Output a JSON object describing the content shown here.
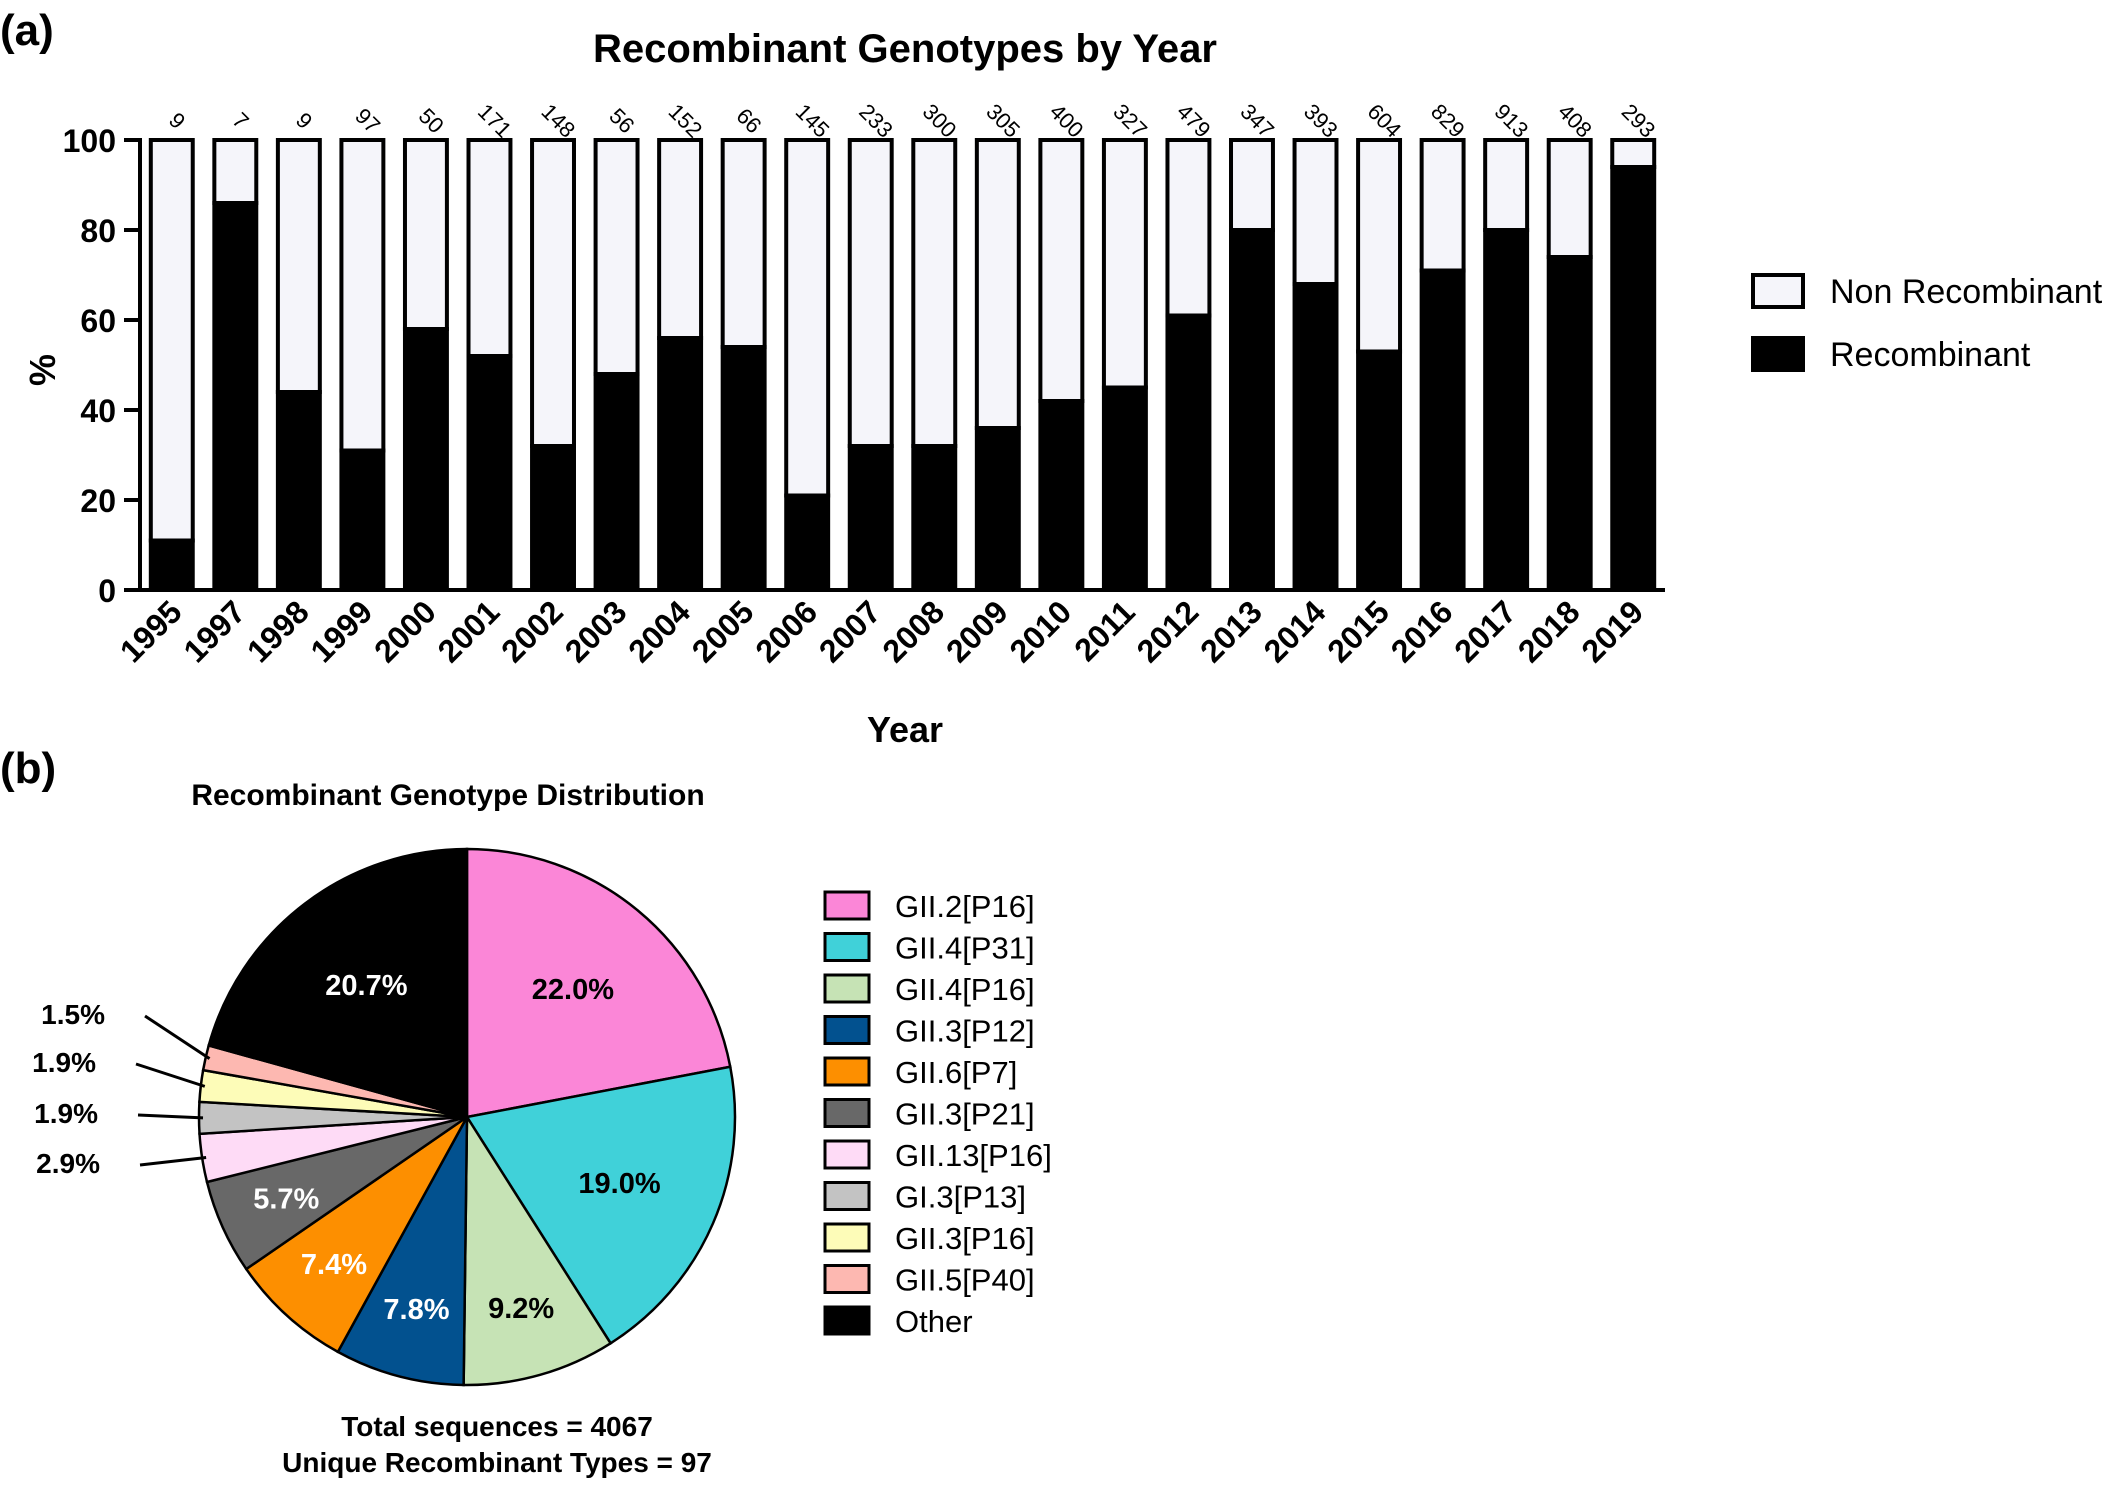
{
  "panels": {
    "a_label": "(a)",
    "b_label": "(b)"
  },
  "chart_data": [
    {
      "type": "bar",
      "stacked": true,
      "title": "Recombinant Genotypes by Year",
      "xlabel": "Year",
      "ylabel": "%",
      "ylim": [
        0,
        100
      ],
      "yticks": [
        "0",
        "20",
        "40",
        "60",
        "80",
        "100"
      ],
      "categories": [
        "1995",
        "1997",
        "1998",
        "1999",
        "2000",
        "2001",
        "2002",
        "2003",
        "2004",
        "2005",
        "2006",
        "2007",
        "2008",
        "2009",
        "2010",
        "2011",
        "2012",
        "2013",
        "2014",
        "2015",
        "2016",
        "2017",
        "2018",
        "2019"
      ],
      "sample_counts": [
        "9",
        "7",
        "9",
        "97",
        "50",
        "171",
        "148",
        "56",
        "152",
        "66",
        "145",
        "233",
        "300",
        "305",
        "400",
        "327",
        "479",
        "347",
        "393",
        "604",
        "829",
        "913",
        "408",
        "293"
      ],
      "series": [
        {
          "name": "Recombinant",
          "color": "#000000",
          "values": [
            11,
            86,
            44,
            31,
            58,
            52,
            32,
            48,
            56,
            54,
            21,
            32,
            32,
            36,
            42,
            45,
            61,
            80,
            68,
            53,
            71,
            80,
            74,
            94
          ]
        },
        {
          "name": "Non Recombinant",
          "color": "#f5f5fa",
          "values": [
            89,
            14,
            56,
            69,
            42,
            48,
            68,
            52,
            44,
            46,
            79,
            68,
            68,
            64,
            58,
            55,
            39,
            20,
            32,
            47,
            29,
            20,
            26,
            6
          ]
        }
      ],
      "legend": [
        {
          "name": "Non Recombinant",
          "color": "#f5f5fa"
        },
        {
          "name": "Recombinant",
          "color": "#000000"
        }
      ],
      "legend_position": "right"
    },
    {
      "type": "pie",
      "title": "Recombinant Genotype Distribution",
      "slices": [
        {
          "name": "GII.2[P16]",
          "value": 22.0,
          "label": "22.0%",
          "color": "#fb86d7"
        },
        {
          "name": "GII.4[P31]",
          "value": 19.0,
          "label": "19.0%",
          "color": "#40d1d9"
        },
        {
          "name": "GII.4[P16]",
          "value": 9.2,
          "label": "9.2%",
          "color": "#c6e3b5"
        },
        {
          "name": "GII.3[P12]",
          "value": 7.8,
          "label": "7.8%",
          "color": "#02518f"
        },
        {
          "name": "GII.6[P7]",
          "value": 7.4,
          "label": "7.4%",
          "color": "#fd8f00"
        },
        {
          "name": "GII.3[P21]",
          "value": 5.7,
          "label": "5.7%",
          "color": "#686868"
        },
        {
          "name": "GII.13[P16]",
          "value": 2.9,
          "label": "2.9%",
          "color": "#fedbf6"
        },
        {
          "name": "GI.3[P13]",
          "value": 1.9,
          "label": "1.9%",
          "color": "#c3c3c3"
        },
        {
          "name": "GII.3[P16]",
          "value": 1.9,
          "label": "1.9%",
          "color": "#fdfcb8"
        },
        {
          "name": "GII.5[P40]",
          "value": 1.5,
          "label": "1.5%",
          "color": "#fdb8b1"
        },
        {
          "name": "Other",
          "value": 20.7,
          "label": "20.7%",
          "color": "#000000"
        }
      ],
      "legend_position": "right",
      "notes": [
        "Total sequences = 4067",
        "Unique Recombinant Types =  97"
      ]
    }
  ]
}
